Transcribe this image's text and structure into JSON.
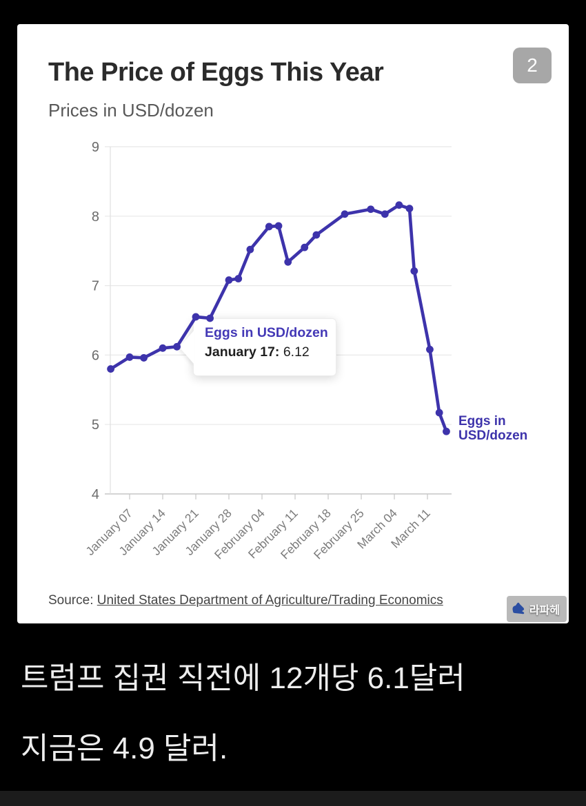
{
  "page": {
    "background": "#000000"
  },
  "card": {
    "badge": "2",
    "title": "The Price of Eggs This Year",
    "subtitle": "Prices in USD/dozen",
    "source_prefix": "Source: ",
    "source_link": "United States Department of Agriculture/Trading Economics",
    "watermark": "라파헤"
  },
  "tooltip": {
    "title": "Eggs in USD/dozen",
    "date_label": "January 17:",
    "value": "6.12"
  },
  "end_label": {
    "line1": "Eggs in",
    "line2": "USD/dozen"
  },
  "caption": {
    "line1": "트럼프 집권 직전에 12개당 6.1달러",
    "line2": "지금은 4.9 달러."
  },
  "colors": {
    "line": "#3d33ab",
    "tooltip_accent": "#4338b6",
    "badge_bg": "#a7a7a7",
    "grid": "#e8e8e8",
    "axis": "#c6c6c6",
    "caption_text": "#ededed",
    "page_bg": "#000000"
  },
  "chart_data": {
    "type": "line",
    "title": "The Price of Eggs This Year",
    "subtitle": "Prices in USD/dozen",
    "xlabel": "",
    "ylabel": "USD per dozen",
    "ylim": [
      4,
      9
    ],
    "y_ticks": [
      4,
      5,
      6,
      7,
      8,
      9
    ],
    "grid": "horizontal",
    "legend_position": "end-of-line",
    "line_color": "#3d33ab",
    "x_ticks": [
      {
        "day": 4,
        "label": "January 07"
      },
      {
        "day": 11,
        "label": "January 14"
      },
      {
        "day": 18,
        "label": "January 21"
      },
      {
        "day": 25,
        "label": "January 28"
      },
      {
        "day": 32,
        "label": "February 04"
      },
      {
        "day": 39,
        "label": "February 11"
      },
      {
        "day": 46,
        "label": "February 18"
      },
      {
        "day": 53,
        "label": "February 25"
      },
      {
        "day": 60,
        "label": "March 04"
      },
      {
        "day": 67,
        "label": "March 11"
      }
    ],
    "series": [
      {
        "name": "Eggs in USD/dozen",
        "points": [
          [
            0,
            5.8
          ],
          [
            4,
            5.97
          ],
          [
            7,
            5.96
          ],
          [
            11,
            6.1
          ],
          [
            14,
            6.12
          ],
          [
            18,
            6.55
          ],
          [
            21,
            6.53
          ],
          [
            25,
            7.08
          ],
          [
            27,
            7.1
          ],
          [
            29.5,
            7.52
          ],
          [
            33.5,
            7.85
          ],
          [
            35.5,
            7.86
          ],
          [
            37.5,
            7.34
          ],
          [
            41,
            7.55
          ],
          [
            43.5,
            7.73
          ],
          [
            49.5,
            8.03
          ],
          [
            55,
            8.1
          ],
          [
            58,
            8.03
          ],
          [
            61,
            8.16
          ],
          [
            63.2,
            8.11
          ],
          [
            64.2,
            7.21
          ],
          [
            67.5,
            6.08
          ],
          [
            69.5,
            5.17
          ],
          [
            71,
            4.9
          ]
        ]
      }
    ],
    "highlight": {
      "series_point_index": 4,
      "label": "January 17",
      "value": 6.12
    }
  }
}
